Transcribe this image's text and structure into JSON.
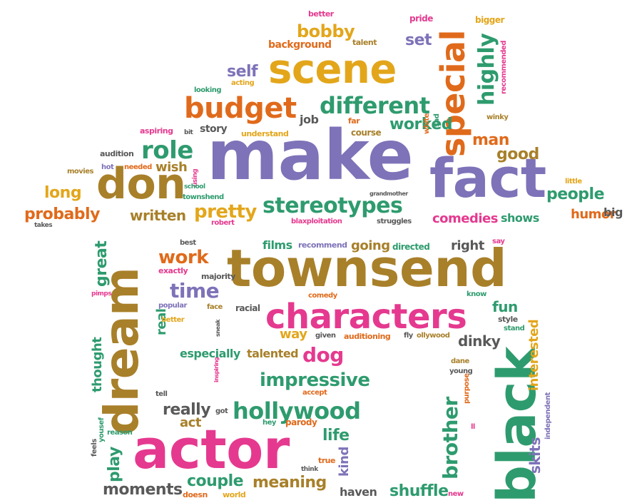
{
  "palette": {
    "purple": "#7e72b8",
    "orange": "#e06a1b",
    "brown": "#a8802a",
    "gold": "#e3a61b",
    "green": "#2e9b6e",
    "pink": "#e5398f",
    "gray": "#595959"
  },
  "words": {
    "make": "make",
    "fact": "fact",
    "townsend": "townsend",
    "actor": "actor",
    "black": "black",
    "dream": "dream",
    "scene": "scene",
    "characters": "characters",
    "don": "don",
    "special": "special",
    "budget": "budget",
    "different": "different",
    "highly": "highly",
    "stereotypes": "stereotypes",
    "role": "role",
    "pretty": "pretty",
    "hollywood": "hollywood",
    "bobby": "bobby",
    "background": "background",
    "set": "set",
    "self": "self",
    "worked": "worked",
    "job": "job",
    "story": "story",
    "understand": "understand",
    "far": "far",
    "course": "course",
    "man": "man",
    "good": "good",
    "wish": "wish",
    "long": "long",
    "probably": "probably",
    "written": "written",
    "people": "people",
    "humor": "humor",
    "big": "big",
    "comedies": "comedies",
    "shows": "shows",
    "better": "better",
    "talent": "talent",
    "pride": "pride",
    "bigger": "bigger",
    "recommended": "recommended",
    "acting": "acting",
    "looking": "looking",
    "aspiring": "aspiring",
    "bit": "bit",
    "audition": "audition",
    "hot": "hot",
    "needed": "needed",
    "movies": "movies",
    "using": "using",
    "school": "school",
    "townshend": "townshend",
    "robert": "robert",
    "takes": "takes",
    "grandmother": "grandmother",
    "blaxploitation": "blaxploitation",
    "struggles": "struggles",
    "white": "white",
    "sad": "sad",
    "winky": "winky",
    "little": "little",
    "work": "work",
    "time": "time",
    "great": "great",
    "exactly": "exactly",
    "majority": "majority",
    "pimps": "pimps",
    "popular": "popular",
    "face": "face",
    "racial": "racial",
    "best": "best",
    "films": "films",
    "recommend": "recommend",
    "going": "going",
    "directed": "directed",
    "right": "right",
    "say": "say",
    "comedy": "comedy",
    "know": "know",
    "fun": "fun",
    "style": "style",
    "stand": "stand",
    "interested": "interested",
    "dinky": "dinky",
    "way": "way",
    "given": "given",
    "auditioning": "auditioning",
    "fly": "fly",
    "ollywood": "ollywood",
    "thought": "thought",
    "real": "real",
    "better2": "better",
    "sneak": "sneak",
    "especially": "especially",
    "talented": "talented",
    "dog": "dog",
    "impressive": "impressive",
    "inspiring": "inspiring",
    "tell": "tell",
    "accept": "accept",
    "dane": "dane",
    "young": "young",
    "purpose": "purpose",
    "independent": "independent",
    "ll": "ll",
    "really": "really",
    "got": "got",
    "act": "act",
    "hey": "hey",
    "parody": "parody",
    "reason": "reason",
    "yousef": "yousef",
    "feels": "feels",
    "play": "play",
    "life": "life",
    "kind": "kind",
    "true": "true",
    "think": "think",
    "brother": "brother",
    "skits": "skits",
    "moments": "moments",
    "couple": "couple",
    "meaning": "meaning",
    "haven": "haven",
    "shuffle": "shuffle",
    "doesn": "doesn",
    "world": "world",
    "new": "new"
  }
}
